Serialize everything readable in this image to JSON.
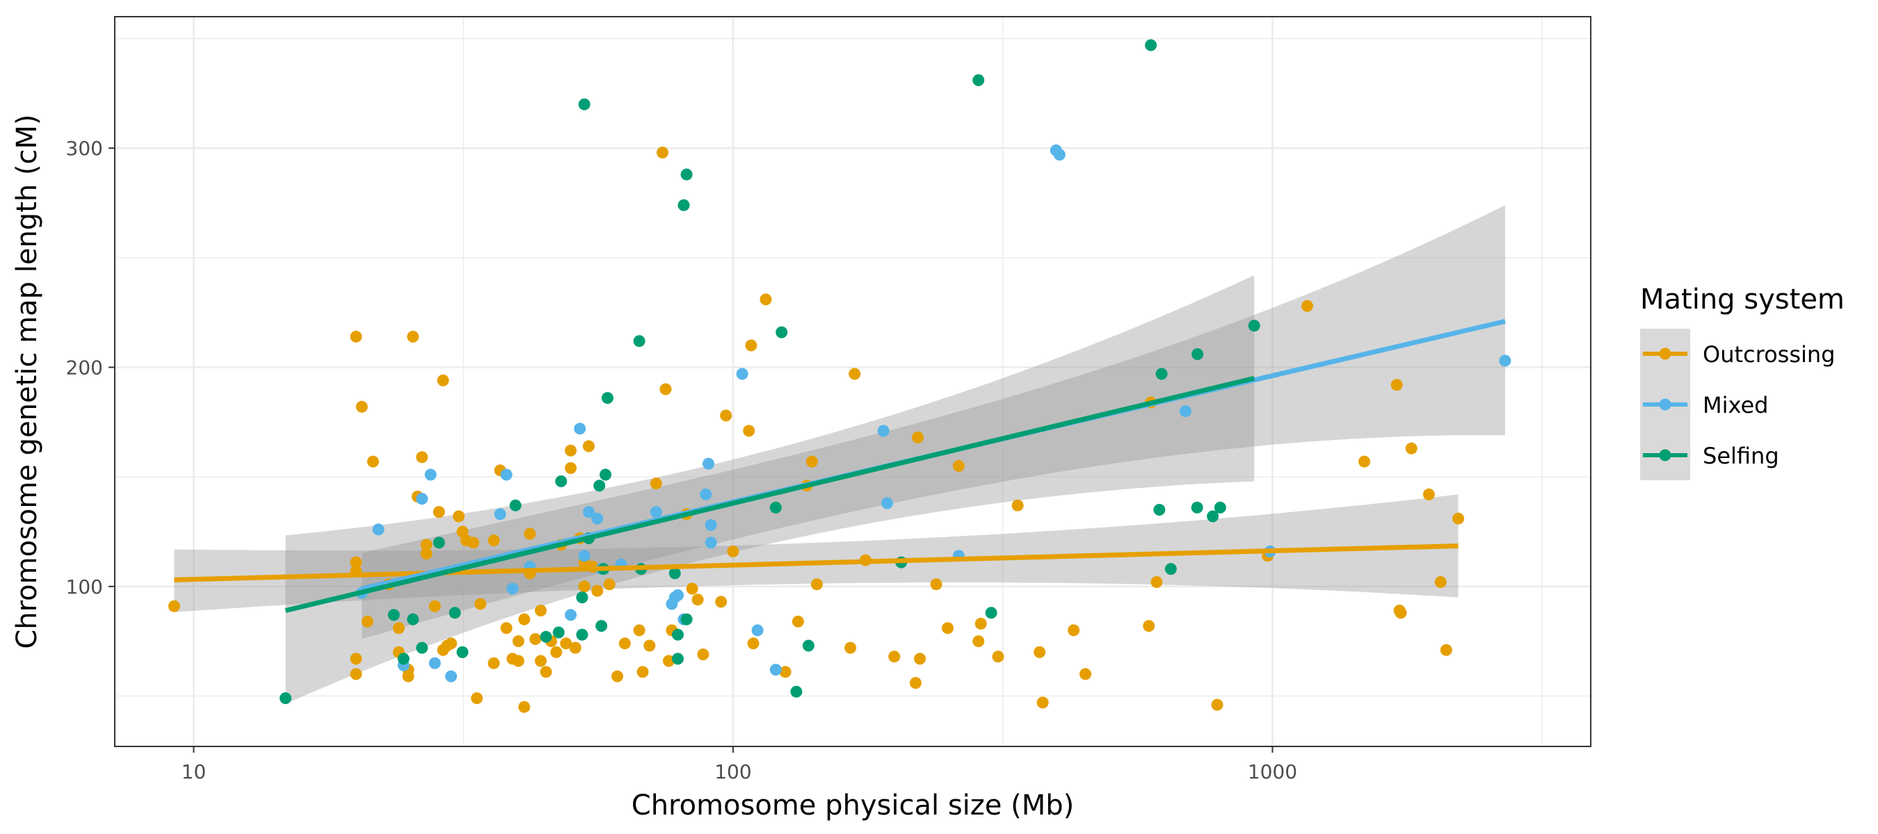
{
  "chart_data": {
    "type": "scatter",
    "xlabel": "Chromosome physical size (Mb)",
    "ylabel": "Chromosome genetic map length (cM)",
    "x_scale": "log10",
    "xlim": [
      7.14,
      3891
    ],
    "ylim": [
      27,
      360
    ],
    "x_ticks": [
      10,
      100,
      1000
    ],
    "x_tick_labels": [
      "10",
      "100",
      "1000"
    ],
    "y_ticks": [
      100,
      200,
      300
    ],
    "y_tick_labels": [
      "100",
      "200",
      "300"
    ],
    "grid": true,
    "legend": {
      "title": "Mating system",
      "placement": "right",
      "entries": [
        "Outcrossing",
        "Mixed",
        "Selfing"
      ]
    },
    "series": [
      {
        "name": "Outcrossing",
        "color": "#E69F00",
        "points": [
          [
            9.2,
            91
          ],
          [
            20,
            214
          ],
          [
            20,
            111
          ],
          [
            20,
            107
          ],
          [
            20,
            60
          ],
          [
            20,
            67
          ],
          [
            20.5,
            182
          ],
          [
            21,
            84
          ],
          [
            21.5,
            157
          ],
          [
            23,
            101
          ],
          [
            24,
            81
          ],
          [
            24,
            70
          ],
          [
            25,
            62
          ],
          [
            25,
            59
          ],
          [
            25.5,
            214
          ],
          [
            26,
            141
          ],
          [
            26.5,
            159
          ],
          [
            27,
            115
          ],
          [
            27,
            119
          ],
          [
            28,
            91
          ],
          [
            28.5,
            134
          ],
          [
            29,
            194
          ],
          [
            29,
            71
          ],
          [
            29.5,
            73
          ],
          [
            30,
            74
          ],
          [
            31,
            132
          ],
          [
            31.5,
            125
          ],
          [
            32,
            121
          ],
          [
            33,
            120
          ],
          [
            33.5,
            49
          ],
          [
            34,
            92
          ],
          [
            36,
            121
          ],
          [
            36,
            65
          ],
          [
            37,
            153
          ],
          [
            38,
            81
          ],
          [
            39,
            67
          ],
          [
            40,
            75
          ],
          [
            40,
            66
          ],
          [
            41,
            45
          ],
          [
            41,
            85
          ],
          [
            42,
            106
          ],
          [
            42,
            124
          ],
          [
            43,
            76
          ],
          [
            44,
            89
          ],
          [
            44,
            66
          ],
          [
            45,
            61
          ],
          [
            46,
            75
          ],
          [
            47,
            70
          ],
          [
            48,
            119
          ],
          [
            49,
            74
          ],
          [
            50,
            162
          ],
          [
            50,
            154
          ],
          [
            51,
            72
          ],
          [
            52,
            122
          ],
          [
            53,
            100
          ],
          [
            53,
            111
          ],
          [
            54,
            164
          ],
          [
            55,
            109
          ],
          [
            56,
            98
          ],
          [
            59,
            101
          ],
          [
            61,
            59
          ],
          [
            63,
            74
          ],
          [
            67,
            80
          ],
          [
            68,
            61
          ],
          [
            70,
            73
          ],
          [
            72,
            147
          ],
          [
            74,
            298
          ],
          [
            75,
            190
          ],
          [
            76,
            66
          ],
          [
            77,
            80
          ],
          [
            82,
            133
          ],
          [
            84,
            99
          ],
          [
            86,
            94
          ],
          [
            88,
            69
          ],
          [
            95,
            93
          ],
          [
            97,
            178
          ],
          [
            100,
            116
          ],
          [
            107,
            171
          ],
          [
            108,
            210
          ],
          [
            109,
            74
          ],
          [
            115,
            231
          ],
          [
            125,
            61
          ],
          [
            132,
            84
          ],
          [
            137,
            146
          ],
          [
            140,
            157
          ],
          [
            143,
            101
          ],
          [
            165,
            72
          ],
          [
            168,
            197
          ],
          [
            176,
            112
          ],
          [
            199,
            68
          ],
          [
            218,
            56
          ],
          [
            220,
            168
          ],
          [
            222,
            67
          ],
          [
            238,
            101
          ],
          [
            250,
            81
          ],
          [
            262,
            155
          ],
          [
            285,
            75
          ],
          [
            288,
            83
          ],
          [
            310,
            68
          ],
          [
            337,
            137
          ],
          [
            370,
            70
          ],
          [
            375,
            47
          ],
          [
            428,
            80
          ],
          [
            450,
            60
          ],
          [
            590,
            82
          ],
          [
            610,
            102
          ],
          [
            595,
            184
          ],
          [
            790,
            46
          ],
          [
            980,
            114
          ],
          [
            1160,
            228
          ],
          [
            1480,
            157
          ],
          [
            1700,
            192
          ],
          [
            1720,
            89
          ],
          [
            1730,
            88
          ],
          [
            1810,
            163
          ],
          [
            1950,
            142
          ],
          [
            2050,
            102
          ],
          [
            2100,
            71
          ],
          [
            2210,
            131
          ]
        ]
      },
      {
        "name": "Mixed",
        "color": "#56B4E9",
        "points": [
          [
            20.5,
            97
          ],
          [
            22,
            126
          ],
          [
            24.5,
            64
          ],
          [
            26.5,
            140
          ],
          [
            27.5,
            151
          ],
          [
            28,
            65
          ],
          [
            30,
            59
          ],
          [
            37,
            133
          ],
          [
            38,
            151
          ],
          [
            39,
            99
          ],
          [
            42,
            109
          ],
          [
            50,
            87
          ],
          [
            52,
            172
          ],
          [
            53,
            114
          ],
          [
            54,
            134
          ],
          [
            56,
            131
          ],
          [
            57,
            108
          ],
          [
            62,
            110
          ],
          [
            72,
            134
          ],
          [
            77,
            92
          ],
          [
            78,
            95
          ],
          [
            79,
            96
          ],
          [
            81,
            85
          ],
          [
            89,
            142
          ],
          [
            90,
            156
          ],
          [
            91,
            128
          ],
          [
            91,
            120
          ],
          [
            104,
            197
          ],
          [
            111,
            80
          ],
          [
            120,
            62
          ],
          [
            190,
            171
          ],
          [
            193,
            138
          ],
          [
            262,
            114
          ],
          [
            397,
            299
          ],
          [
            403,
            297
          ],
          [
            690,
            180
          ],
          [
            990,
            116
          ],
          [
            2700,
            203
          ]
        ]
      },
      {
        "name": "Selfing",
        "color": "#009E73",
        "points": [
          [
            14.8,
            49
          ],
          [
            23.5,
            87
          ],
          [
            24.5,
            67
          ],
          [
            25.5,
            85
          ],
          [
            26.5,
            72
          ],
          [
            28.5,
            120
          ],
          [
            30.5,
            88
          ],
          [
            31.5,
            70
          ],
          [
            39.5,
            137
          ],
          [
            45,
            77
          ],
          [
            47.5,
            79
          ],
          [
            48,
            148
          ],
          [
            52.5,
            95
          ],
          [
            52.5,
            78
          ],
          [
            53,
            320
          ],
          [
            54,
            122
          ],
          [
            56.5,
            146
          ],
          [
            57,
            82
          ],
          [
            57.5,
            108
          ],
          [
            58,
            151
          ],
          [
            58.5,
            186
          ],
          [
            67,
            212
          ],
          [
            67.5,
            108
          ],
          [
            78,
            106
          ],
          [
            79,
            78
          ],
          [
            79,
            67
          ],
          [
            81,
            274
          ],
          [
            82,
            288
          ],
          [
            82,
            85
          ],
          [
            120,
            136
          ],
          [
            123,
            216
          ],
          [
            131,
            52
          ],
          [
            138,
            73
          ],
          [
            205,
            111
          ],
          [
            285,
            331
          ],
          [
            301,
            88
          ],
          [
            595,
            347
          ],
          [
            617,
            135
          ],
          [
            623,
            197
          ],
          [
            648,
            108
          ],
          [
            725,
            136
          ],
          [
            726,
            206
          ],
          [
            775,
            132
          ],
          [
            800,
            136
          ],
          [
            925,
            219
          ]
        ]
      }
    ],
    "trend_lines": [
      {
        "name": "Outcrossing",
        "color": "#E69F00",
        "x": [
          9.2,
          2210
        ],
        "y": [
          103,
          118.5
        ],
        "ci_lower": [
          85,
          95
        ],
        "ci_upper": [
          120,
          142
        ]
      },
      {
        "name": "Mixed",
        "color": "#56B4E9",
        "x": [
          20.5,
          2700
        ],
        "y": [
          99,
          221
        ],
        "ci_lower": [
          71,
          169
        ],
        "ci_upper": [
          119,
          274
        ]
      },
      {
        "name": "Selfing",
        "color": "#009E73",
        "x": [
          14.8,
          925
        ],
        "y": [
          89,
          195
        ],
        "ci_lower": [
          37,
          148
        ],
        "ci_upper": [
          131,
          242
        ]
      }
    ]
  }
}
